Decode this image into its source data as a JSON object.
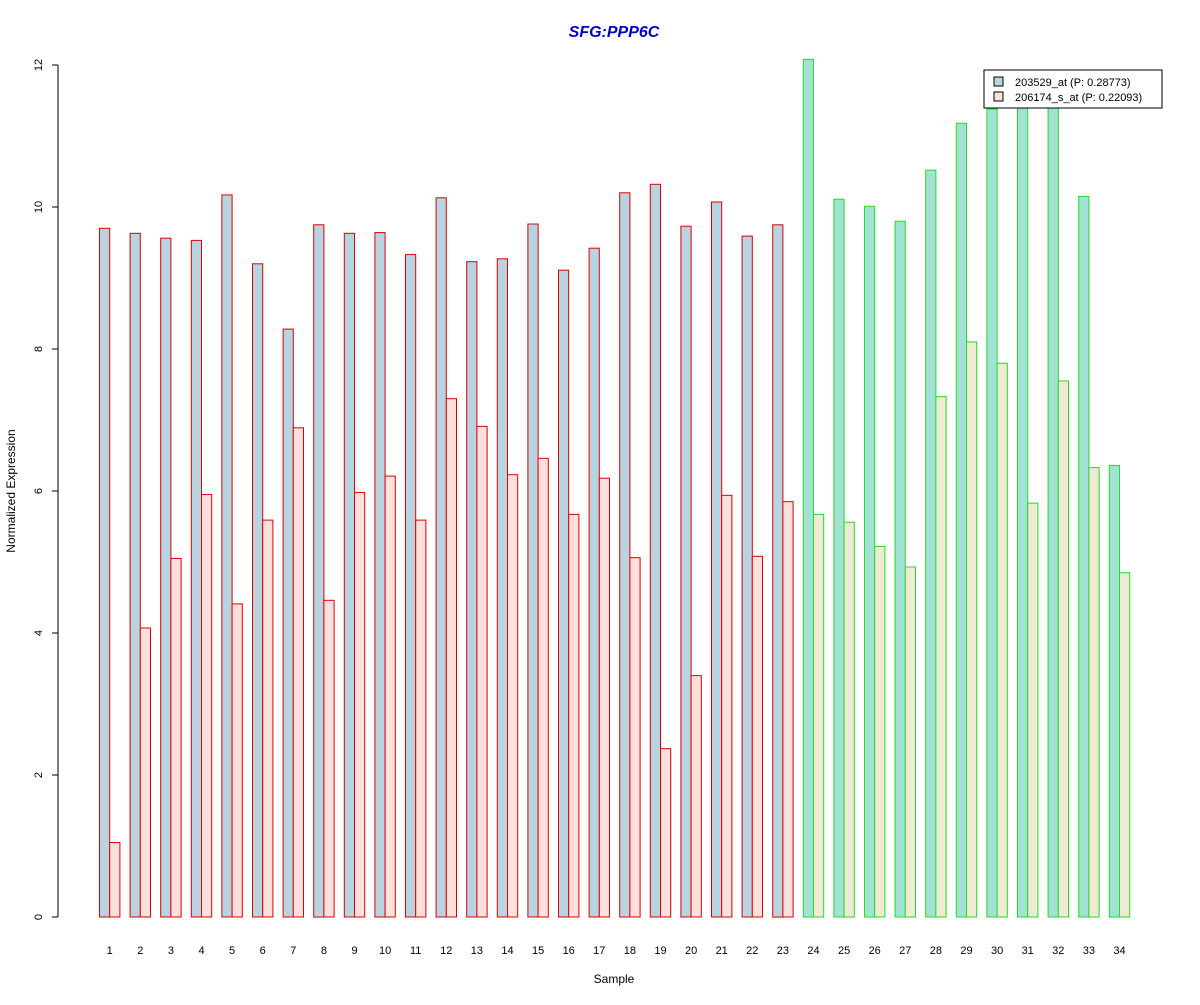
{
  "chart_data": {
    "type": "bar",
    "title": "SFG:PPP6C",
    "xlabel": "Sample",
    "ylabel": "Normalized Expression",
    "ylim": [
      0,
      12
    ],
    "yticks": [
      0,
      2,
      4,
      6,
      8,
      10,
      12
    ],
    "grid": false,
    "legend_position": "top-right",
    "categories": [
      "1",
      "2",
      "3",
      "4",
      "5",
      "6",
      "7",
      "8",
      "9",
      "10",
      "11",
      "12",
      "13",
      "14",
      "15",
      "16",
      "17",
      "18",
      "19",
      "20",
      "21",
      "22",
      "23",
      "24",
      "25",
      "26",
      "27",
      "28",
      "29",
      "30",
      "31",
      "32",
      "33",
      "34"
    ],
    "group_boundary_after": 23,
    "series": [
      {
        "name": "203529_at (P: 0.28773)",
        "values": [
          9.7,
          9.63,
          9.56,
          9.53,
          10.17,
          9.2,
          8.28,
          9.75,
          9.63,
          9.64,
          9.33,
          10.13,
          9.23,
          9.27,
          9.76,
          9.11,
          9.42,
          10.2,
          10.32,
          9.73,
          10.07,
          9.59,
          9.75,
          12.08,
          10.11,
          10.01,
          9.8,
          10.52,
          11.18,
          11.38,
          11.4,
          11.4,
          10.15,
          6.36
        ]
      },
      {
        "name": "206174_s_at (P: 0.22093)",
        "values": [
          1.05,
          4.07,
          5.05,
          5.95,
          4.41,
          5.59,
          6.89,
          4.46,
          5.98,
          6.21,
          5.59,
          7.3,
          6.91,
          6.23,
          6.46,
          5.67,
          6.18,
          5.06,
          2.37,
          3.4,
          5.94,
          5.08,
          5.85,
          5.67,
          5.56,
          5.22,
          4.93,
          7.33,
          8.1,
          7.8,
          5.83,
          7.55,
          6.33,
          4.85
        ]
      }
    ],
    "colors": {
      "title": "#0000CC",
      "series1_fill_group1": "#B8D4E0",
      "series2_fill_group1": "#FDE0DC",
      "series1_fill_group2": "#A2E2D4",
      "series2_fill_group2": "#EEEAD4",
      "border_group1": "#DD0000",
      "border_group2": "#22DD22",
      "legend_swatch1": "#B8D4E0",
      "legend_swatch2": "#FDE0DC"
    }
  }
}
